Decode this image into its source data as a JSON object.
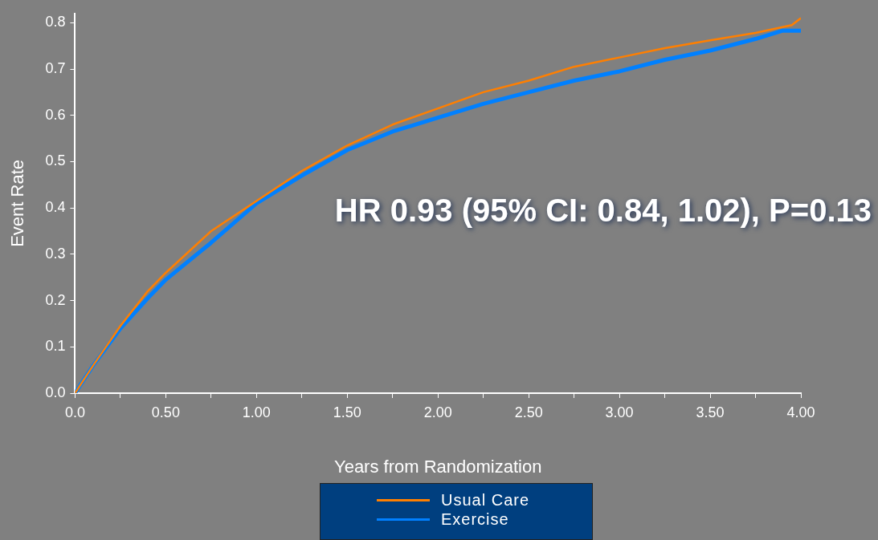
{
  "chart_data": {
    "type": "line",
    "xlabel": "Years from Randomization",
    "ylabel": "Event Rate",
    "annotations": [
      "HR 0.93 (95% CI: 0.84, 1.02), P=0.13"
    ],
    "xlim": [
      0,
      4
    ],
    "ylim": [
      0,
      0.82
    ],
    "xticks": [
      {
        "value": 0,
        "label": "0.0"
      },
      {
        "value": 0.25,
        "label": null
      },
      {
        "value": 0.5,
        "label": "0.50"
      },
      {
        "value": 0.75,
        "label": null
      },
      {
        "value": 1,
        "label": "1.00"
      },
      {
        "value": 1.25,
        "label": null
      },
      {
        "value": 1.5,
        "label": "1.50"
      },
      {
        "value": 1.75,
        "label": null
      },
      {
        "value": 2,
        "label": "2.00"
      },
      {
        "value": 2.25,
        "label": null
      },
      {
        "value": 2.5,
        "label": "2.50"
      },
      {
        "value": 2.75,
        "label": null
      },
      {
        "value": 3,
        "label": "3.00"
      },
      {
        "value": 3.25,
        "label": null
      },
      {
        "value": 3.5,
        "label": "3.50"
      },
      {
        "value": 3.75,
        "label": null
      },
      {
        "value": 4,
        "label": "4.00"
      }
    ],
    "yticks": [
      {
        "value": 0,
        "label": "0.0"
      },
      {
        "value": 0.1,
        "label": "0.1"
      },
      {
        "value": 0.2,
        "label": "0.2"
      },
      {
        "value": 0.3,
        "label": "0.3"
      },
      {
        "value": 0.4,
        "label": "0.4"
      },
      {
        "value": 0.5,
        "label": "0.5"
      },
      {
        "value": 0.6,
        "label": "0.6"
      },
      {
        "value": 0.7,
        "label": "0.7"
      },
      {
        "value": 0.8,
        "label": "0.8"
      }
    ],
    "grid": false,
    "legend": "bottom",
    "marker": "none",
    "line_style": "solid",
    "series": [
      {
        "name": "Usual Care",
        "color": "#ff7f00",
        "x": [
          0,
          0.1,
          0.25,
          0.4,
          0.5,
          0.75,
          1,
          1.25,
          1.5,
          1.75,
          2,
          2.25,
          2.5,
          2.75,
          3,
          3.25,
          3.5,
          3.75,
          3.95,
          4
        ],
        "values": [
          0,
          0.06,
          0.145,
          0.22,
          0.26,
          0.35,
          0.415,
          0.48,
          0.535,
          0.58,
          0.615,
          0.65,
          0.675,
          0.705,
          0.725,
          0.745,
          0.762,
          0.778,
          0.795,
          0.81
        ]
      },
      {
        "name": "Exercise",
        "color": "#0080ff",
        "x": [
          0,
          0.1,
          0.25,
          0.4,
          0.5,
          0.75,
          1,
          1.25,
          1.5,
          1.75,
          2,
          2.25,
          2.5,
          2.75,
          3,
          3.25,
          3.5,
          3.75,
          3.9,
          4
        ],
        "values": [
          0,
          0.06,
          0.14,
          0.205,
          0.245,
          0.325,
          0.41,
          0.47,
          0.525,
          0.565,
          0.595,
          0.625,
          0.65,
          0.675,
          0.695,
          0.72,
          0.74,
          0.765,
          0.783,
          0.783
        ]
      }
    ]
  }
}
